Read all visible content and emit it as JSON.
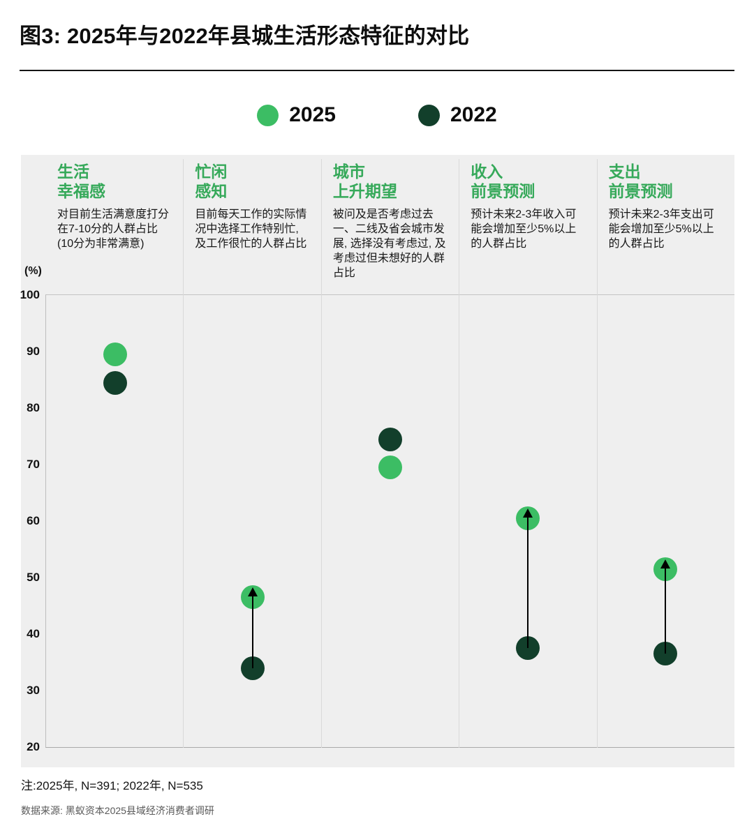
{
  "title": "图3: 2025年与2022年县城生活形态特征的对比",
  "legend": [
    {
      "label": "2025",
      "color": "#3cbd64"
    },
    {
      "label": "2022",
      "color": "#123f2b"
    }
  ],
  "unit_label": "(%)",
  "notes": "注:2025年, N=391; 2022年, N=535",
  "source": "数据来源: 黑蚁资本2025县域经济消费者调研",
  "chart_data": {
    "type": "scatter",
    "title": "图3: 2025年与2022年县城生活形态特征的对比",
    "xlabel": "",
    "ylabel": "(%)",
    "ylim": [
      20,
      100
    ],
    "yticks": [
      100,
      90,
      80,
      70,
      60,
      50,
      40,
      30,
      20
    ],
    "grid": false,
    "legend_position": "top-center",
    "categories": [
      {
        "title_lines": [
          "生活",
          "幸福感"
        ],
        "description": "对目前生活满意度打分在7-10分的人群占比(10分为非常满意)"
      },
      {
        "title_lines": [
          "忙闲",
          "感知"
        ],
        "description": "目前每天工作的实际情况中选择工作特别忙, 及工作很忙的人群占比"
      },
      {
        "title_lines": [
          "城市",
          "上升期望"
        ],
        "description": "被问及是否考虑过去一、二线及省会城市发展, 选择没有考虑过, 及考虑过但未想好的人群占比"
      },
      {
        "title_lines": [
          "收入",
          "前景预测"
        ],
        "description": "预计未来2-3年收入可能会增加至少5%以上的人群占比"
      },
      {
        "title_lines": [
          "支出",
          "前景预测"
        ],
        "description": "预计未来2-3年支出可能会增加至少5%以上的人群占比"
      }
    ],
    "series": [
      {
        "name": "2025",
        "color": "#3cbd64",
        "values": [
          89.5,
          46.5,
          69.5,
          60.5,
          51.5
        ]
      },
      {
        "name": "2022",
        "color": "#123f2b",
        "values": [
          84.5,
          34.0,
          74.5,
          37.5,
          36.5
        ]
      }
    ],
    "arrows": [
      {
        "category_index": 1,
        "from": 34.0,
        "to": 46.5
      },
      {
        "category_index": 3,
        "from": 37.5,
        "to": 60.5
      },
      {
        "category_index": 4,
        "from": 36.5,
        "to": 51.5
      }
    ]
  }
}
